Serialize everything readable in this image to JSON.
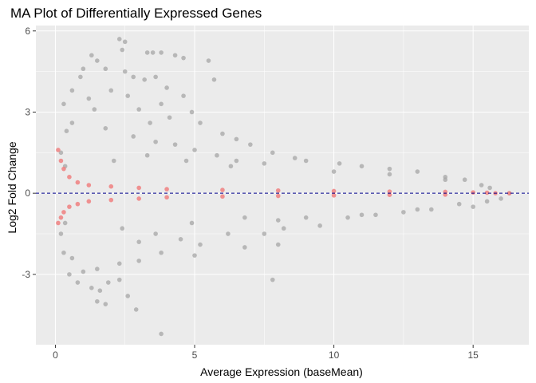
{
  "chart_data": {
    "type": "scatter",
    "title": "MA Plot of Differentially Expressed Genes",
    "xlabel": "Average Expression (baseMean)",
    "ylabel": "Log2 Fold Change",
    "xlim": [
      -0.7,
      17.0
    ],
    "ylim": [
      -5.6,
      6.2
    ],
    "x_ticks": [
      0,
      5,
      10,
      15
    ],
    "x_tick_labels": [
      "0",
      "5",
      "10",
      "15"
    ],
    "y_ticks": [
      -3,
      0,
      3,
      6
    ],
    "y_tick_labels": [
      "-3",
      "0",
      "3",
      "6"
    ],
    "grid": true,
    "panel_background": "#ebebeb",
    "reference_line": {
      "y": 0,
      "color": "#00008b",
      "style": "dashed"
    },
    "series": [
      {
        "color": "#a6a6a6",
        "points": [
          [
            2.3,
            5.7
          ],
          [
            2.5,
            5.6
          ],
          [
            2.4,
            5.3
          ],
          [
            3.3,
            5.2
          ],
          [
            3.5,
            5.2
          ],
          [
            3.8,
            5.2
          ],
          [
            4.3,
            5.1
          ],
          [
            4.6,
            5.0
          ],
          [
            5.5,
            4.9
          ],
          [
            1.3,
            5.1
          ],
          [
            1.5,
            4.9
          ],
          [
            1.0,
            4.6
          ],
          [
            0.9,
            4.3
          ],
          [
            1.8,
            4.6
          ],
          [
            2.5,
            4.5
          ],
          [
            2.8,
            4.3
          ],
          [
            3.2,
            4.2
          ],
          [
            3.6,
            4.3
          ],
          [
            5.7,
            4.2
          ],
          [
            2.0,
            3.8
          ],
          [
            4.0,
            3.9
          ],
          [
            4.6,
            3.6
          ],
          [
            3.8,
            3.3
          ],
          [
            2.6,
            3.6
          ],
          [
            0.6,
            3.8
          ],
          [
            1.2,
            3.5
          ],
          [
            3.0,
            3.1
          ],
          [
            4.9,
            3.0
          ],
          [
            5.2,
            2.6
          ],
          [
            3.4,
            2.6
          ],
          [
            4.1,
            2.8
          ],
          [
            6.0,
            2.2
          ],
          [
            6.5,
            2.0
          ],
          [
            7.0,
            1.8
          ],
          [
            7.8,
            1.5
          ],
          [
            8.6,
            1.3
          ],
          [
            9.0,
            1.2
          ],
          [
            10.2,
            1.1
          ],
          [
            11.0,
            1.0
          ],
          [
            12.0,
            0.9
          ],
          [
            13.0,
            0.8
          ],
          [
            14.0,
            0.6
          ],
          [
            14.7,
            0.5
          ],
          [
            15.3,
            0.3
          ],
          [
            6.2,
            -1.5
          ],
          [
            7.5,
            -1.5
          ],
          [
            8.2,
            -1.3
          ],
          [
            9.5,
            -1.2
          ],
          [
            10.5,
            -0.9
          ],
          [
            11.5,
            -0.8
          ],
          [
            12.5,
            -0.7
          ],
          [
            13.5,
            -0.6
          ],
          [
            14.5,
            -0.4
          ],
          [
            15.5,
            -0.3
          ],
          [
            16.0,
            -0.2
          ],
          [
            4.5,
            -1.7
          ],
          [
            5.0,
            -2.3
          ],
          [
            5.2,
            -1.9
          ],
          [
            3.8,
            -2.2
          ],
          [
            3.0,
            -2.5
          ],
          [
            2.3,
            -2.6
          ],
          [
            1.5,
            -2.8
          ],
          [
            1.0,
            -2.9
          ],
          [
            0.8,
            -3.3
          ],
          [
            1.3,
            -3.5
          ],
          [
            1.6,
            -3.6
          ],
          [
            1.9,
            -3.3
          ],
          [
            2.3,
            -3.2
          ],
          [
            2.6,
            -3.8
          ],
          [
            1.5,
            -4.0
          ],
          [
            1.8,
            -4.1
          ],
          [
            2.9,
            -4.3
          ],
          [
            3.8,
            -5.2
          ],
          [
            7.8,
            -3.2
          ],
          [
            6.8,
            -2.0
          ],
          [
            8.0,
            -1.9
          ],
          [
            3.0,
            -1.8
          ],
          [
            0.5,
            -3.0
          ],
          [
            0.6,
            -2.4
          ],
          [
            0.3,
            -2.2
          ],
          [
            0.4,
            2.3
          ],
          [
            0.6,
            2.6
          ],
          [
            0.3,
            3.3
          ],
          [
            1.4,
            3.1
          ],
          [
            1.8,
            2.4
          ],
          [
            2.8,
            2.1
          ],
          [
            3.6,
            1.9
          ],
          [
            4.3,
            1.8
          ],
          [
            5.0,
            1.6
          ],
          [
            5.8,
            1.4
          ],
          [
            6.5,
            1.2
          ],
          [
            7.5,
            1.1
          ],
          [
            8.0,
            -1.0
          ],
          [
            9.0,
            -0.9
          ],
          [
            10.0,
            0.8
          ],
          [
            11.0,
            -0.8
          ],
          [
            12.0,
            0.7
          ],
          [
            13.0,
            -0.6
          ],
          [
            14.0,
            0.5
          ],
          [
            15.0,
            -0.5
          ],
          [
            15.6,
            0.2
          ],
          [
            16.3,
            0.0
          ],
          [
            0.2,
            1.5
          ],
          [
            0.2,
            -1.5
          ],
          [
            0.35,
            1.0
          ],
          [
            0.35,
            -1.1
          ],
          [
            6.3,
            1.0
          ],
          [
            6.8,
            -0.9
          ],
          [
            2.1,
            1.2
          ],
          [
            2.4,
            -1.3
          ],
          [
            3.3,
            1.4
          ],
          [
            3.6,
            -1.5
          ],
          [
            4.7,
            1.2
          ],
          [
            4.9,
            -1.1
          ]
        ]
      },
      {
        "color": "#f08080",
        "points": [
          [
            0.1,
            1.6
          ],
          [
            0.1,
            -1.1
          ],
          [
            0.2,
            1.2
          ],
          [
            0.2,
            -0.9
          ],
          [
            0.3,
            0.9
          ],
          [
            0.3,
            -0.7
          ],
          [
            0.5,
            0.6
          ],
          [
            0.5,
            -0.5
          ],
          [
            0.8,
            0.4
          ],
          [
            0.8,
            -0.4
          ],
          [
            1.2,
            0.3
          ],
          [
            1.2,
            -0.3
          ],
          [
            2.0,
            0.25
          ],
          [
            2.0,
            -0.25
          ],
          [
            3.0,
            0.2
          ],
          [
            3.0,
            -0.2
          ],
          [
            4.0,
            0.15
          ],
          [
            4.0,
            -0.15
          ],
          [
            6.0,
            0.12
          ],
          [
            6.0,
            -0.12
          ],
          [
            8.0,
            0.1
          ],
          [
            8.0,
            -0.1
          ],
          [
            10.0,
            0.08
          ],
          [
            10.0,
            -0.08
          ],
          [
            12.0,
            0.06
          ],
          [
            12.0,
            -0.06
          ],
          [
            14.0,
            0.05
          ],
          [
            14.0,
            -0.05
          ],
          [
            15.0,
            0.03
          ],
          [
            15.5,
            0.02
          ],
          [
            15.8,
            0.0
          ],
          [
            16.3,
            0.0
          ]
        ]
      }
    ]
  }
}
